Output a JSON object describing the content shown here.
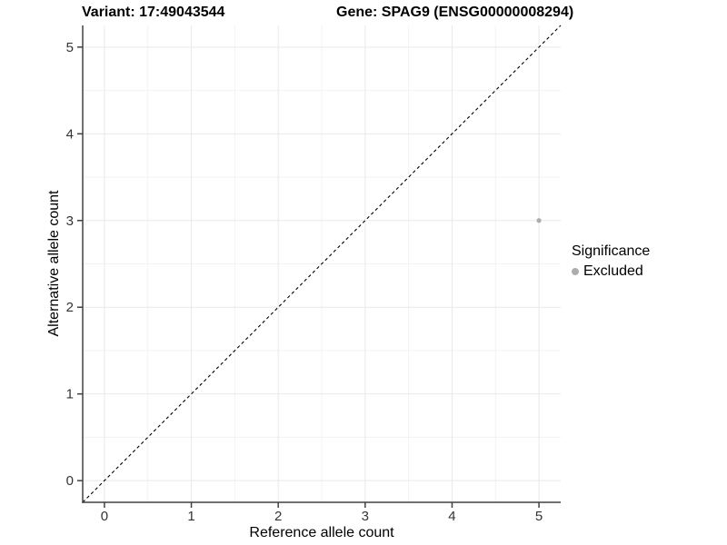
{
  "chart_data": {
    "type": "scatter",
    "titles": {
      "variant": "Variant: 17:49043544",
      "gene": "Gene: SPAG9 (ENSG00000008294)"
    },
    "xlabel": "Reference allele count",
    "ylabel": "Alternative allele count",
    "xlim": [
      -0.25,
      5.25
    ],
    "ylim": [
      -0.25,
      5.25
    ],
    "xticks": [
      0,
      1,
      2,
      3,
      4,
      5
    ],
    "yticks": [
      0,
      1,
      2,
      3,
      4,
      5
    ],
    "grid": "major+minor",
    "legend_position": "right",
    "series": [
      {
        "name": "Excluded",
        "color": "#adadad",
        "points": [
          {
            "x": 5,
            "y": 3
          }
        ]
      }
    ],
    "reference_line": {
      "slope": 1,
      "intercept": 0,
      "style": "dashed",
      "color": "#000000"
    },
    "legend": {
      "title": "Significance",
      "entries": [
        {
          "label": "Excluded",
          "color": "#adadad"
        }
      ]
    },
    "colors": {
      "background": "#ffffff",
      "grid_major": "#e9e9e9",
      "grid_minor": "#f3f3f3",
      "axis_line": "#404040",
      "tick_label": "#333333",
      "title_text": "#000000"
    }
  }
}
